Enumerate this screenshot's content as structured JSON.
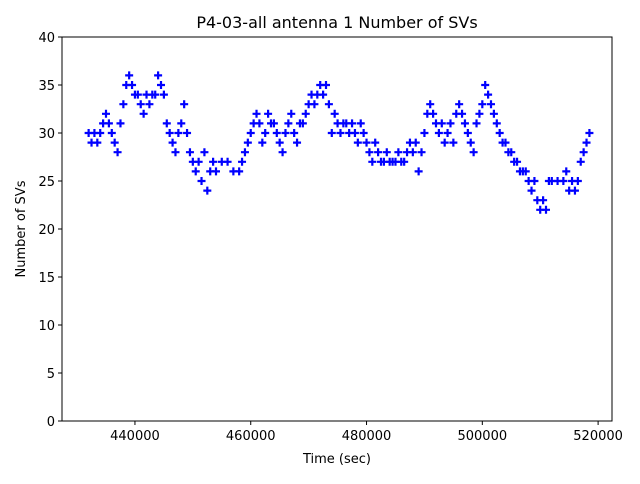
{
  "chart_data": {
    "type": "scatter",
    "title": "P4-03-all antenna 1 Number of SVs",
    "x_label": "Time (sec)",
    "y_label": "Number of SVs",
    "color": "#0000ff",
    "marker": "+",
    "xlim": [
      427400,
      522400
    ],
    "xticks": [
      440000,
      460000,
      480000,
      500000,
      520000
    ],
    "ylim": [
      0,
      40
    ],
    "yticks": [
      0,
      5,
      10,
      15,
      20,
      25,
      30,
      35,
      40
    ],
    "x": [
      432000,
      432500,
      433000,
      433500,
      434000,
      434500,
      435000,
      435500,
      436000,
      436500,
      437000,
      437500,
      438000,
      438500,
      439000,
      439500,
      440000,
      440500,
      441000,
      441500,
      442000,
      442500,
      443000,
      443500,
      444000,
      444500,
      445000,
      445500,
      446000,
      446500,
      447000,
      447500,
      448000,
      448500,
      449000,
      449500,
      450000,
      450500,
      451000,
      451500,
      452000,
      452500,
      453000,
      453500,
      454000,
      455000,
      456000,
      457000,
      458000,
      458500,
      459000,
      459500,
      460000,
      460500,
      461000,
      461500,
      462000,
      462500,
      463000,
      463500,
      464000,
      464500,
      465000,
      465500,
      466000,
      466500,
      467000,
      467500,
      468000,
      468500,
      469000,
      469500,
      470000,
      470500,
      471000,
      471500,
      472000,
      472500,
      473000,
      473500,
      474000,
      474500,
      475000,
      475500,
      476000,
      476500,
      477000,
      477500,
      478000,
      478500,
      479000,
      479500,
      480000,
      480500,
      481000,
      481500,
      482000,
      482500,
      483000,
      483500,
      484000,
      484500,
      485000,
      485500,
      486000,
      486500,
      487000,
      487500,
      488000,
      488500,
      489000,
      489500,
      490000,
      490500,
      491000,
      491500,
      492000,
      492500,
      493000,
      493500,
      494000,
      494500,
      495000,
      495500,
      496000,
      496500,
      497000,
      497500,
      498000,
      498500,
      499000,
      499500,
      500000,
      500500,
      501000,
      501500,
      502000,
      502500,
      503000,
      503500,
      504000,
      504500,
      505000,
      505500,
      506000,
      506500,
      507000,
      507500,
      508000,
      508500,
      509000,
      509500,
      510000,
      510500,
      511000,
      511500,
      512000,
      513000,
      514000,
      514500,
      515000,
      515500,
      516000,
      516500,
      517000,
      517500,
      518000,
      518500
    ],
    "values": [
      30,
      29,
      30,
      29,
      30,
      31,
      32,
      31,
      30,
      29,
      28,
      31,
      33,
      35,
      36,
      35,
      34,
      34,
      33,
      32,
      34,
      33,
      34,
      34,
      36,
      35,
      34,
      31,
      30,
      29,
      28,
      30,
      31,
      33,
      30,
      28,
      27,
      26,
      27,
      25,
      28,
      24,
      26,
      27,
      26,
      27,
      27,
      26,
      26,
      27,
      28,
      29,
      30,
      31,
      32,
      31,
      29,
      30,
      32,
      31,
      31,
      30,
      29,
      28,
      30,
      31,
      32,
      30,
      29,
      31,
      31,
      32,
      33,
      34,
      33,
      34,
      35,
      34,
      35,
      33,
      30,
      32,
      31,
      30,
      31,
      31,
      30,
      31,
      30,
      29,
      31,
      30,
      29,
      28,
      27,
      29,
      28,
      27,
      27,
      28,
      27,
      27,
      27,
      28,
      27,
      27,
      28,
      29,
      28,
      29,
      26,
      28,
      30,
      32,
      33,
      32,
      31,
      30,
      31,
      29,
      30,
      31,
      29,
      32,
      33,
      32,
      31,
      30,
      29,
      28,
      31,
      32,
      33,
      35,
      34,
      33,
      32,
      31,
      30,
      29,
      29,
      28,
      28,
      27,
      27,
      26,
      26,
      26,
      25,
      24,
      25,
      23,
      22,
      23,
      22,
      25,
      25,
      25,
      25,
      26,
      24,
      25,
      24,
      25,
      27,
      28,
      29,
      30
    ]
  }
}
